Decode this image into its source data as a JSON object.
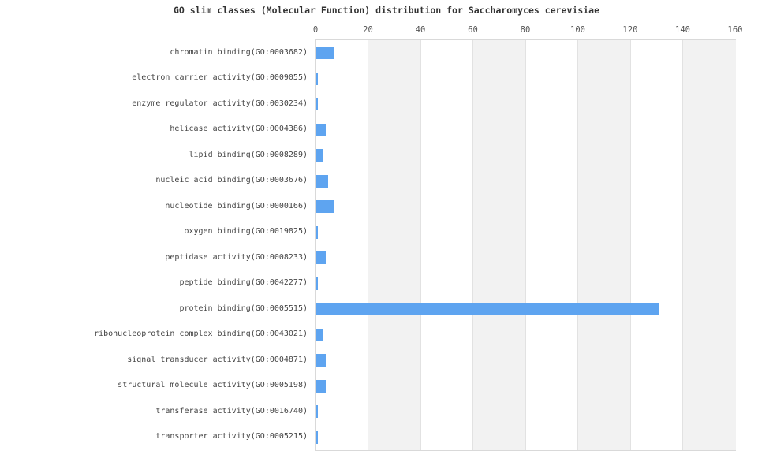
{
  "chart_data": {
    "type": "bar",
    "orientation": "horizontal",
    "title": "GO slim classes (Molecular Function) distribution for Saccharomyces cerevisiae",
    "categories": [
      "chromatin binding(GO:0003682)",
      "electron carrier activity(GO:0009055)",
      "enzyme regulator activity(GO:0030234)",
      "helicase activity(GO:0004386)",
      "lipid binding(GO:0008289)",
      "nucleic acid binding(GO:0003676)",
      "nucleotide binding(GO:0000166)",
      "oxygen binding(GO:0019825)",
      "peptidase activity(GO:0008233)",
      "peptide binding(GO:0042277)",
      "protein binding(GO:0005515)",
      "ribonucleoprotein complex binding(GO:0043021)",
      "signal transducer activity(GO:0004871)",
      "structural molecule activity(GO:0005198)",
      "transferase activity(GO:0016740)",
      "transporter activity(GO:0005215)"
    ],
    "values": [
      7,
      1,
      1,
      4,
      3,
      5,
      7,
      1,
      4,
      1,
      131,
      3,
      4,
      4,
      1,
      1
    ],
    "xlabel": "",
    "ylabel": "",
    "xlim": [
      0,
      160
    ],
    "xticks": [
      0,
      20,
      40,
      60,
      80,
      100,
      120,
      140,
      160
    ],
    "xtick_position": "top",
    "legend": "none",
    "grid": "alternating-vertical-bands",
    "bar_color": "#5ea4f0",
    "band_color_even": "#ffffff",
    "band_color_odd": "#f2f2f2",
    "plot_border_color": "#d9d9d9"
  }
}
